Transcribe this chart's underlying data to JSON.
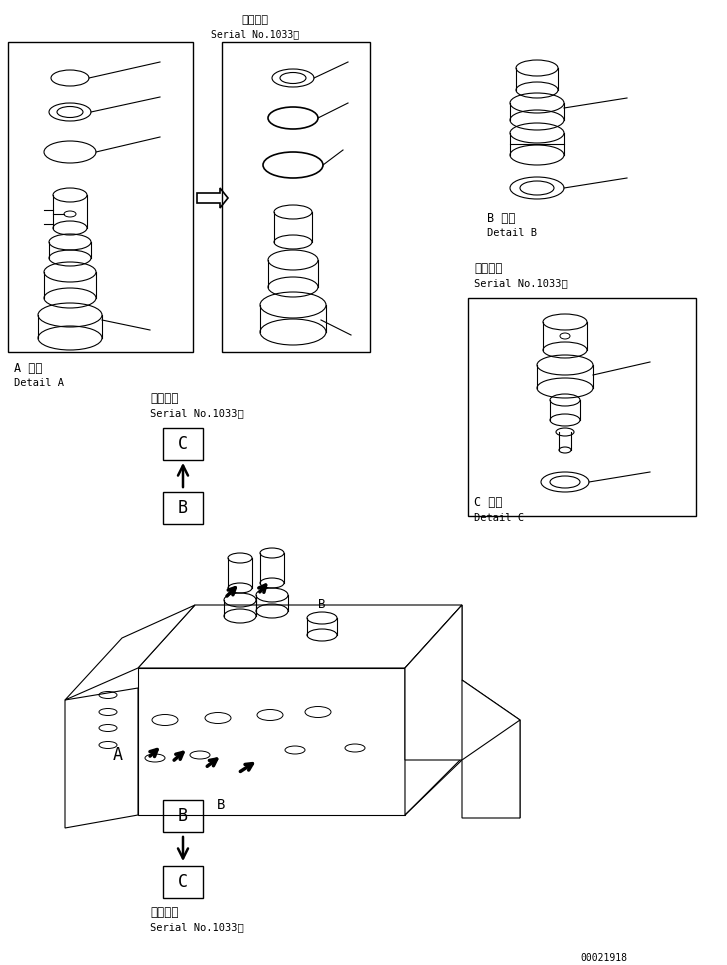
{
  "bg_color": "#ffffff",
  "line_color": "#000000",
  "fig_width": 7.27,
  "fig_height": 9.65,
  "dpi": 100,
  "serial_text_jp": "適用号機",
  "serial_text_en": "Serial No.1033～",
  "detail_A_jp": "A 詳細",
  "detail_A_en": "Detail A",
  "detail_B_jp": "B 詳細",
  "detail_B_en": "Detail B",
  "detail_C_jp": "C 詳細",
  "detail_C_en": "Detail C",
  "part_number": "00021918"
}
